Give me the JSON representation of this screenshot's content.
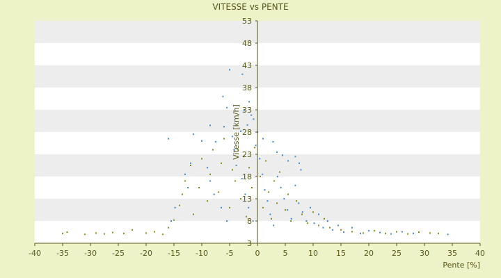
{
  "chart_data": {
    "type": "scatter",
    "title": "VITESSE vs PENTE",
    "xlabel": "Pente [%]",
    "ylabel": "Vitesse [km/h]",
    "xlim": [
      -40,
      40
    ],
    "ylim": [
      3,
      53
    ],
    "x_ticks": [
      "-40",
      "-35",
      "-30",
      "-25",
      "-20",
      "-15",
      "-10",
      "-5",
      "0",
      "5",
      "10",
      "15",
      "20",
      "25",
      "30",
      "35",
      "40"
    ],
    "y_ticks": [
      "3",
      "8",
      "13",
      "18",
      "23",
      "28",
      "33",
      "38",
      "43",
      "48",
      "53"
    ],
    "grid": "horizontal alternating bands",
    "legend": "none",
    "colors": {
      "page_background": "#eef2c9",
      "plot_background": "#ffffff",
      "band": "#ededed",
      "series_1": "#3f88d6",
      "series_2": "#8a8a10",
      "text": "#555514",
      "axis": "#555514"
    },
    "series": [
      {
        "color": "#8a8a10",
        "points": [
          [
            -35,
            5.2
          ],
          [
            -34.2,
            5.5
          ],
          [
            -31,
            5.0
          ],
          [
            -29,
            5.3
          ],
          [
            -27.5,
            5.1
          ],
          [
            -26,
            5.4
          ],
          [
            -24,
            5.2
          ],
          [
            -22.5,
            6.0
          ],
          [
            -20,
            5.3
          ],
          [
            -18.5,
            5.6
          ],
          [
            -17,
            5.0
          ],
          [
            -16,
            6.5
          ],
          [
            -15,
            8.2
          ],
          [
            -14,
            11.5
          ],
          [
            -13.5,
            14.0
          ],
          [
            -13,
            17.0
          ],
          [
            -12,
            20.5
          ],
          [
            -11.5,
            9.5
          ],
          [
            -10.5,
            15.5
          ],
          [
            -10,
            22.0
          ],
          [
            -9,
            12.5
          ],
          [
            -8.5,
            18.5
          ],
          [
            -8,
            24.0
          ],
          [
            -7,
            14.5
          ],
          [
            -6.5,
            21.0
          ],
          [
            -6,
            26.5
          ],
          [
            -5,
            11.0
          ],
          [
            -4.5,
            19.5
          ],
          [
            -4,
            17.0
          ],
          [
            -3.5,
            24.0
          ],
          [
            -3,
            13.0
          ],
          [
            -2.5,
            22.5
          ],
          [
            -2,
            9.0
          ],
          [
            -1.5,
            20.0
          ],
          [
            -1,
            15.5
          ],
          [
            -0.5,
            24.5
          ],
          [
            0.5,
            18.0
          ],
          [
            1,
            11.0
          ],
          [
            1.5,
            21.5
          ],
          [
            2,
            14.5
          ],
          [
            2.5,
            8.5
          ],
          [
            3,
            17.0
          ],
          [
            3.5,
            12.0
          ],
          [
            4,
            19.0
          ],
          [
            5,
            10.5
          ],
          [
            5.5,
            14.0
          ],
          [
            6,
            8.0
          ],
          [
            7,
            12.5
          ],
          [
            8,
            9.5
          ],
          [
            9,
            7.5
          ],
          [
            10,
            10.0
          ],
          [
            11,
            7.0
          ],
          [
            12,
            8.5
          ],
          [
            13,
            6.5
          ],
          [
            15,
            6.0
          ],
          [
            17,
            5.6
          ],
          [
            19,
            5.3
          ],
          [
            21,
            5.8
          ],
          [
            23,
            5.2
          ],
          [
            25,
            5.6
          ],
          [
            27,
            5.1
          ],
          [
            29,
            5.5
          ],
          [
            31,
            5.3
          ],
          [
            32.5,
            5.2
          ]
        ]
      },
      {
        "color": "#3f88d6",
        "points": [
          [
            -5,
            42
          ],
          [
            -2.7,
            41
          ],
          [
            -6.2,
            36
          ],
          [
            -1.5,
            34.8
          ],
          [
            -5.5,
            33.5
          ],
          [
            -2.4,
            32.8
          ],
          [
            -1.1,
            31.8
          ],
          [
            -0.7,
            30.9
          ],
          [
            -8.5,
            29.5
          ],
          [
            -6,
            29.2
          ],
          [
            -1.8,
            29.6
          ],
          [
            -16,
            26.5
          ],
          [
            -11.5,
            27.5
          ],
          [
            -10,
            26
          ],
          [
            -7.5,
            25.8
          ],
          [
            -4.5,
            27
          ],
          [
            -3,
            28.2
          ],
          [
            0,
            28
          ],
          [
            1,
            26.5
          ],
          [
            2.8,
            25.8
          ],
          [
            3.5,
            23.5
          ],
          [
            4.5,
            22.8
          ],
          [
            5.5,
            21.5
          ],
          [
            6.8,
            22.5
          ],
          [
            7.5,
            21.0
          ],
          [
            7.8,
            19.5
          ],
          [
            -12,
            21
          ],
          [
            -13,
            18.5
          ],
          [
            -12.5,
            15.5
          ],
          [
            -14.8,
            11
          ],
          [
            -15.5,
            8
          ],
          [
            -9,
            20
          ],
          [
            -8.5,
            17
          ],
          [
            -7.8,
            14
          ],
          [
            -6.5,
            11
          ],
          [
            -5.5,
            8
          ],
          [
            -4.2,
            24
          ],
          [
            -3.8,
            20.5
          ],
          [
            -2.8,
            17.5
          ],
          [
            -2.2,
            14
          ],
          [
            -1.6,
            11
          ],
          [
            -0.8,
            8
          ],
          [
            -0.3,
            25
          ],
          [
            0.4,
            22
          ],
          [
            0.9,
            18.5
          ],
          [
            1.3,
            15
          ],
          [
            1.8,
            12.5
          ],
          [
            2.3,
            9.5
          ],
          [
            2.9,
            7
          ],
          [
            3.6,
            18
          ],
          [
            4.2,
            15.5
          ],
          [
            4.8,
            13
          ],
          [
            5.4,
            10.5
          ],
          [
            6.1,
            8.5
          ],
          [
            6.8,
            16
          ],
          [
            7.4,
            12
          ],
          [
            8.1,
            10
          ],
          [
            8.8,
            8
          ],
          [
            9.5,
            11
          ],
          [
            10.2,
            7.5
          ],
          [
            11,
            9.5
          ],
          [
            11.8,
            6.5
          ],
          [
            12.6,
            8
          ],
          [
            13.5,
            6
          ],
          [
            14.5,
            7
          ],
          [
            15.5,
            5.5
          ],
          [
            17,
            6.5
          ],
          [
            18.5,
            5.2
          ],
          [
            20,
            5.8
          ],
          [
            22,
            5.4
          ],
          [
            24,
            5.1
          ],
          [
            26,
            5.6
          ],
          [
            28,
            5.2
          ],
          [
            34.2,
            5.0
          ]
        ]
      }
    ]
  }
}
